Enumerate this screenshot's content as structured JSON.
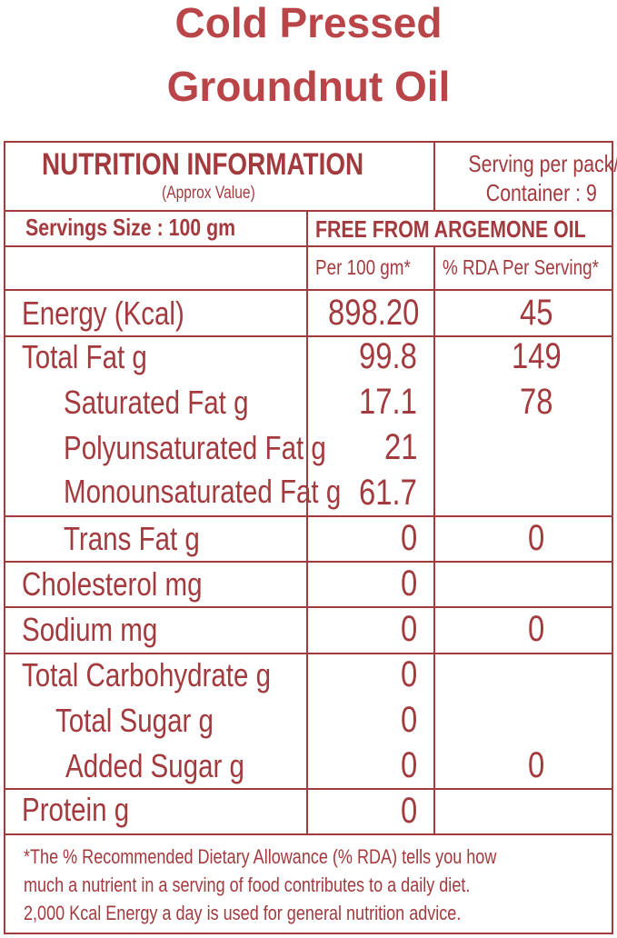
{
  "title": {
    "line1": "Cold Pressed",
    "line2": "Groundnut Oil"
  },
  "header": {
    "heading": "NUTRITION INFORMATION",
    "subheading": "(Approx Value)",
    "serving_line1": "Serving per pack/",
    "serving_line2": "Container : 9"
  },
  "serving_size": "Servings Size : 100 gm",
  "claim": "FREE FROM ARGEMONE OIL",
  "columns": {
    "per100": "Per 100 gm*",
    "rda": "% RDA Per Serving*"
  },
  "nutrients": [
    {
      "name": "Energy (Kcal)",
      "per100": "898.20",
      "rda": "45"
    },
    {
      "name": "Total Fat g",
      "per100": "99.8",
      "rda": "149"
    },
    {
      "name": "Saturated Fat g",
      "per100": "17.1",
      "rda": "78"
    },
    {
      "name": "Polyunsaturated Fat g",
      "per100": "21",
      "rda": ""
    },
    {
      "name": "Monounsaturated Fat g",
      "per100": "61.7",
      "rda": ""
    },
    {
      "name": "Trans Fat g",
      "per100": "0",
      "rda": "0"
    },
    {
      "name": "Cholesterol mg",
      "per100": "0",
      "rda": ""
    },
    {
      "name": "Sodium mg",
      "per100": "0",
      "rda": "0"
    },
    {
      "name": "Total Carbohydrate g",
      "per100": "0",
      "rda": ""
    },
    {
      "name": "Total Sugar g",
      "per100": "0",
      "rda": ""
    },
    {
      "name": "Added Sugar g",
      "per100": "0",
      "rda": "0"
    },
    {
      "name": "Protein g",
      "per100": "0",
      "rda": ""
    }
  ],
  "footnote": {
    "line1": "*The % Recommended Dietary Allowance (% RDA) tells you how",
    "line2": "much a nutrient in a serving of food contributes to a daily diet.",
    "line3": "2,000 Kcal Energy a day is used for general nutrition advice."
  }
}
